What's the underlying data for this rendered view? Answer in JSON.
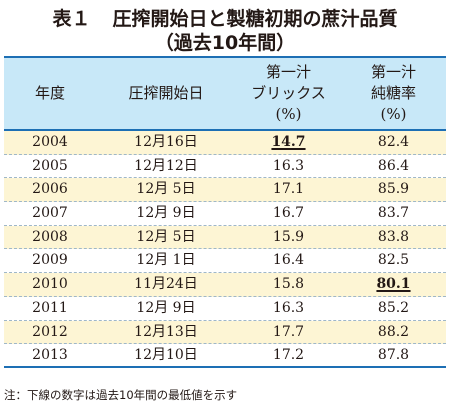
{
  "title": {
    "label": "表１",
    "text": "圧搾開始日と製糖初期の蔗汁品質",
    "subtitle": "（過去10年間）"
  },
  "table": {
    "headers": {
      "year": "年度",
      "start_date": "圧搾開始日",
      "brix_line1": "第一汁",
      "brix_line2": "ブリックス",
      "brix_unit": "(%)",
      "purity_line1": "第一汁",
      "purity_line2": "純糖率",
      "purity_unit": "(%)"
    },
    "rows": [
      {
        "year": "2004",
        "date": "12月16日",
        "brix": "14.7",
        "purity": "82.4",
        "brix_min": true,
        "purity_min": false
      },
      {
        "year": "2005",
        "date": "12月12日",
        "brix": "16.3",
        "purity": "86.4",
        "brix_min": false,
        "purity_min": false
      },
      {
        "year": "2006",
        "date": "12月 5日",
        "brix": "17.1",
        "purity": "85.9",
        "brix_min": false,
        "purity_min": false
      },
      {
        "year": "2007",
        "date": "12月 9日",
        "brix": "16.7",
        "purity": "83.7",
        "brix_min": false,
        "purity_min": false
      },
      {
        "year": "2008",
        "date": "12月 5日",
        "brix": "15.9",
        "purity": "83.8",
        "brix_min": false,
        "purity_min": false
      },
      {
        "year": "2009",
        "date": "12月 1日",
        "brix": "16.4",
        "purity": "82.5",
        "brix_min": false,
        "purity_min": false
      },
      {
        "year": "2010",
        "date": "11月24日",
        "brix": "15.8",
        "purity": "80.1",
        "brix_min": false,
        "purity_min": true
      },
      {
        "year": "2011",
        "date": "12月 9日",
        "brix": "16.3",
        "purity": "85.2",
        "brix_min": false,
        "purity_min": false
      },
      {
        "year": "2012",
        "date": "12月13日",
        "brix": "17.7",
        "purity": "88.2",
        "brix_min": false,
        "purity_min": false
      },
      {
        "year": "2013",
        "date": "12月10日",
        "brix": "17.2",
        "purity": "87.8",
        "brix_min": false,
        "purity_min": false
      }
    ]
  },
  "note": "注：下線の数字は過去10年間の最低値を示す"
}
